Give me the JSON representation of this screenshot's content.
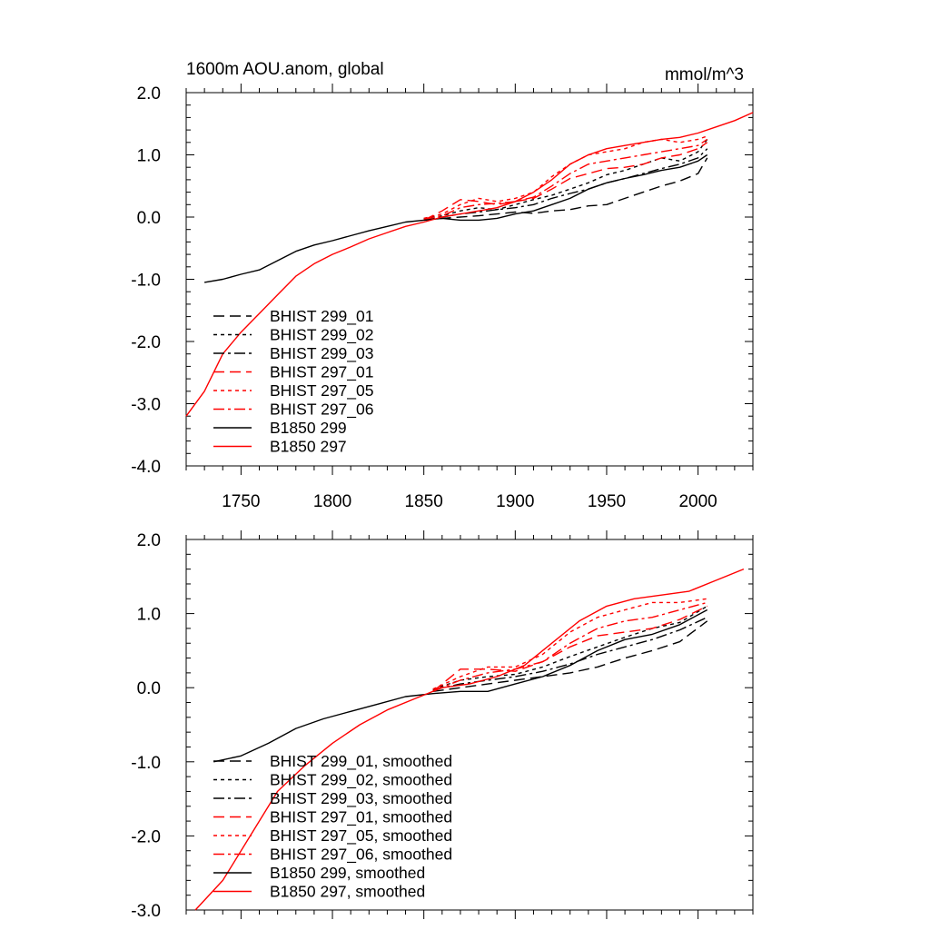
{
  "colors": {
    "black": "#000000",
    "red": "#ff0000",
    "background": "#ffffff"
  },
  "chart_data": [
    {
      "type": "line",
      "title": "1600m AOU.anom, global",
      "units": "mmol/m^3",
      "xlim": [
        1720,
        2030
      ],
      "ylim": [
        -4.0,
        2.0
      ],
      "xticks": [
        1750,
        1800,
        1850,
        1900,
        1950,
        2000
      ],
      "xtick_labels": [
        "1750",
        "1800",
        "1850",
        "1900",
        "1950",
        "2000"
      ],
      "yticks": [
        -4,
        -3,
        -2,
        -1,
        0,
        1,
        2
      ],
      "ytick_labels": [
        "-4.0",
        "-3.0",
        "-2.0",
        "-1.0",
        "0.0",
        "1.0",
        "2.0"
      ],
      "grid": false,
      "legend_position": "bottom-left",
      "series": [
        {
          "name": "BHIST 299_01",
          "color": "#000000",
          "dash": "long-dash",
          "x": [
            1850,
            1860,
            1870,
            1880,
            1890,
            1900,
            1910,
            1920,
            1930,
            1940,
            1950,
            1960,
            1970,
            1980,
            1990,
            2000,
            2005
          ],
          "y": [
            -0.05,
            -0.02,
            0.0,
            0.02,
            0.05,
            0.08,
            0.06,
            0.1,
            0.12,
            0.18,
            0.2,
            0.3,
            0.4,
            0.5,
            0.58,
            0.7,
            0.95
          ]
        },
        {
          "name": "BHIST 299_02",
          "color": "#000000",
          "dash": "dot",
          "x": [
            1850,
            1860,
            1870,
            1880,
            1890,
            1900,
            1910,
            1920,
            1930,
            1940,
            1950,
            1960,
            1970,
            1980,
            1990,
            2000,
            2005
          ],
          "y": [
            -0.02,
            0.02,
            0.1,
            0.15,
            0.12,
            0.2,
            0.28,
            0.35,
            0.45,
            0.55,
            0.68,
            0.75,
            0.85,
            0.95,
            0.9,
            1.05,
            1.25
          ]
        },
        {
          "name": "BHIST 299_03",
          "color": "#000000",
          "dash": "dash-dot",
          "x": [
            1850,
            1860,
            1870,
            1880,
            1890,
            1900,
            1910,
            1920,
            1930,
            1940,
            1950,
            1960,
            1970,
            1980,
            1990,
            2000,
            2005
          ],
          "y": [
            -0.03,
            0.0,
            0.05,
            0.08,
            0.12,
            0.15,
            0.2,
            0.3,
            0.38,
            0.45,
            0.55,
            0.62,
            0.7,
            0.78,
            0.85,
            0.95,
            1.1
          ]
        },
        {
          "name": "BHIST 297_01",
          "color": "#ff0000",
          "dash": "long-dash",
          "x": [
            1850,
            1860,
            1870,
            1880,
            1890,
            1900,
            1910,
            1920,
            1930,
            1940,
            1950,
            1960,
            1970,
            1980,
            1990,
            2000,
            2005
          ],
          "y": [
            -0.05,
            0.1,
            0.28,
            0.25,
            0.2,
            0.25,
            0.3,
            0.45,
            0.62,
            0.7,
            0.78,
            0.8,
            0.85,
            0.95,
            1.0,
            1.1,
            1.2
          ]
        },
        {
          "name": "BHIST 297_05",
          "color": "#ff0000",
          "dash": "dot",
          "x": [
            1850,
            1860,
            1870,
            1880,
            1890,
            1900,
            1910,
            1920,
            1930,
            1940,
            1950,
            1960,
            1970,
            1980,
            1990,
            2000,
            2005
          ],
          "y": [
            -0.02,
            0.05,
            0.2,
            0.3,
            0.25,
            0.3,
            0.4,
            0.65,
            0.85,
            1.0,
            1.05,
            1.1,
            1.2,
            1.25,
            1.2,
            1.25,
            1.3
          ]
        },
        {
          "name": "BHIST 297_06",
          "color": "#ff0000",
          "dash": "dash-dot",
          "x": [
            1850,
            1860,
            1870,
            1880,
            1890,
            1900,
            1910,
            1920,
            1930,
            1940,
            1950,
            1960,
            1970,
            1980,
            1990,
            2000,
            2005
          ],
          "y": [
            -0.04,
            0.02,
            0.15,
            0.2,
            0.22,
            0.25,
            0.32,
            0.5,
            0.7,
            0.85,
            0.9,
            0.95,
            1.0,
            1.05,
            1.1,
            1.15,
            1.25
          ]
        },
        {
          "name": "B1850 299",
          "color": "#000000",
          "dash": "solid",
          "x": [
            1730,
            1740,
            1750,
            1760,
            1770,
            1780,
            1790,
            1800,
            1810,
            1820,
            1830,
            1840,
            1850,
            1860,
            1870,
            1880,
            1890,
            1900,
            1910,
            1920,
            1930,
            1940,
            1950,
            1960,
            1970,
            1980,
            1990,
            2000,
            2005
          ],
          "y": [
            -1.05,
            -1.0,
            -0.92,
            -0.85,
            -0.7,
            -0.55,
            -0.45,
            -0.38,
            -0.3,
            -0.22,
            -0.15,
            -0.08,
            -0.05,
            -0.02,
            -0.05,
            -0.05,
            -0.02,
            0.05,
            0.1,
            0.2,
            0.3,
            0.45,
            0.55,
            0.62,
            0.68,
            0.75,
            0.8,
            0.9,
            1.0
          ]
        },
        {
          "name": "B1850 297",
          "color": "#ff0000",
          "dash": "solid",
          "x": [
            1720,
            1730,
            1740,
            1750,
            1760,
            1770,
            1780,
            1790,
            1800,
            1810,
            1820,
            1830,
            1840,
            1850,
            1860,
            1870,
            1880,
            1890,
            1900,
            1910,
            1920,
            1930,
            1940,
            1950,
            1960,
            1970,
            1980,
            1990,
            2000,
            2010,
            2020,
            2030
          ],
          "y": [
            -3.2,
            -2.8,
            -2.2,
            -1.85,
            -1.55,
            -1.25,
            -0.95,
            -0.75,
            -0.6,
            -0.48,
            -0.35,
            -0.25,
            -0.15,
            -0.08,
            0.0,
            0.05,
            0.1,
            0.15,
            0.25,
            0.4,
            0.6,
            0.85,
            1.0,
            1.1,
            1.15,
            1.2,
            1.25,
            1.28,
            1.35,
            1.45,
            1.55,
            1.68
          ]
        }
      ]
    },
    {
      "type": "line",
      "title": "",
      "units": "",
      "xlim": [
        1720,
        2030
      ],
      "ylim": [
        -3.0,
        2.0
      ],
      "xticks": [
        1750,
        1800,
        1850,
        1900,
        1950,
        2000
      ],
      "xtick_labels": [],
      "yticks": [
        -3,
        -2,
        -1,
        0,
        1,
        2
      ],
      "ytick_labels": [
        "-3.0",
        "-2.0",
        "-1.0",
        "0.0",
        "1.0",
        "2.0"
      ],
      "grid": false,
      "legend_position": "bottom-left",
      "series": [
        {
          "name": "BHIST 299_01, smoothed",
          "color": "#000000",
          "dash": "long-dash",
          "x": [
            1855,
            1870,
            1885,
            1900,
            1915,
            1930,
            1945,
            1960,
            1975,
            1990,
            2005
          ],
          "y": [
            -0.05,
            0.0,
            0.05,
            0.1,
            0.15,
            0.2,
            0.28,
            0.4,
            0.5,
            0.62,
            0.9
          ]
        },
        {
          "name": "BHIST 299_02, smoothed",
          "color": "#000000",
          "dash": "dot",
          "x": [
            1855,
            1870,
            1885,
            1900,
            1915,
            1930,
            1945,
            1960,
            1975,
            1990,
            2005
          ],
          "y": [
            -0.02,
            0.1,
            0.15,
            0.18,
            0.28,
            0.42,
            0.55,
            0.68,
            0.8,
            0.88,
            1.1
          ]
        },
        {
          "name": "BHIST 299_03, smoothed",
          "color": "#000000",
          "dash": "dash-dot",
          "x": [
            1855,
            1870,
            1885,
            1900,
            1915,
            1930,
            1945,
            1960,
            1975,
            1990,
            2005
          ],
          "y": [
            -0.03,
            0.05,
            0.1,
            0.15,
            0.22,
            0.32,
            0.45,
            0.55,
            0.65,
            0.78,
            0.95
          ]
        },
        {
          "name": "BHIST 297_01, smoothed",
          "color": "#ff0000",
          "dash": "long-dash",
          "x": [
            1855,
            1870,
            1885,
            1900,
            1915,
            1930,
            1945,
            1960,
            1975,
            1990,
            2005
          ],
          "y": [
            -0.05,
            0.25,
            0.25,
            0.22,
            0.35,
            0.55,
            0.7,
            0.75,
            0.8,
            0.92,
            1.1
          ]
        },
        {
          "name": "BHIST 297_05, smoothed",
          "color": "#ff0000",
          "dash": "dot",
          "x": [
            1855,
            1870,
            1885,
            1900,
            1915,
            1930,
            1945,
            1960,
            1975,
            1990,
            2005
          ],
          "y": [
            -0.02,
            0.15,
            0.28,
            0.28,
            0.45,
            0.75,
            0.95,
            1.05,
            1.15,
            1.15,
            1.2
          ]
        },
        {
          "name": "BHIST 297_06, smoothed",
          "color": "#ff0000",
          "dash": "dash-dot",
          "x": [
            1855,
            1870,
            1885,
            1900,
            1915,
            1930,
            1945,
            1960,
            1975,
            1990,
            2005
          ],
          "y": [
            -0.04,
            0.1,
            0.2,
            0.25,
            0.35,
            0.6,
            0.8,
            0.9,
            0.95,
            1.05,
            1.15
          ]
        },
        {
          "name": "B1850 299, smoothed",
          "color": "#000000",
          "dash": "solid",
          "x": [
            1735,
            1750,
            1765,
            1780,
            1795,
            1810,
            1825,
            1840,
            1855,
            1870,
            1885,
            1900,
            1915,
            1930,
            1945,
            1960,
            1975,
            1990,
            2005
          ],
          "y": [
            -1.0,
            -0.92,
            -0.75,
            -0.55,
            -0.42,
            -0.32,
            -0.22,
            -0.12,
            -0.08,
            -0.05,
            -0.05,
            0.05,
            0.15,
            0.3,
            0.5,
            0.65,
            0.72,
            0.85,
            1.05
          ]
        },
        {
          "name": "B1850 297, smoothed",
          "color": "#ff0000",
          "dash": "solid",
          "x": [
            1725,
            1740,
            1755,
            1770,
            1785,
            1800,
            1815,
            1830,
            1845,
            1860,
            1875,
            1890,
            1905,
            1920,
            1935,
            1950,
            1965,
            1980,
            1995,
            2010,
            2025
          ],
          "y": [
            -3.0,
            -2.6,
            -2.0,
            -1.4,
            -1.05,
            -0.75,
            -0.5,
            -0.3,
            -0.15,
            0.0,
            0.05,
            0.15,
            0.3,
            0.6,
            0.9,
            1.1,
            1.2,
            1.25,
            1.3,
            1.45,
            1.6
          ]
        }
      ]
    }
  ]
}
